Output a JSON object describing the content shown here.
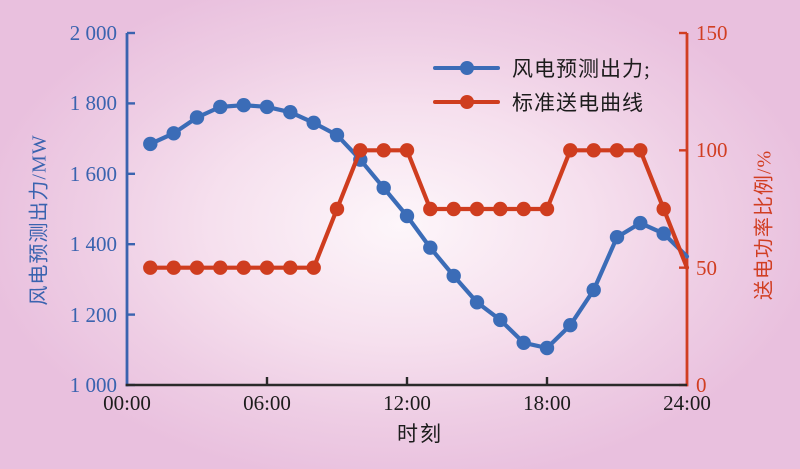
{
  "colors": {
    "wind_blue": "#3b6cb7",
    "blue_text": "#3a63af",
    "curve_red": "#cf3d1f",
    "red_text": "#d13e22",
    "black_text": "#1c1c1c",
    "x_axis": "#2a2a2a"
  },
  "legend": {
    "items": [
      {
        "label": "风电预测出力;",
        "color": "#3b6cb7"
      },
      {
        "label": "标准送电曲线",
        "color": "#cf3d1f"
      }
    ]
  },
  "chart_data": {
    "type": "line",
    "title": "",
    "xlabel": "时刻",
    "ylabel_left": "风电预测出力/MW",
    "ylabel_right": "送电功率比例/%",
    "grid": false,
    "legend_position": "top-right-inside",
    "x_hours": [
      1,
      2,
      3,
      4,
      5,
      6,
      7,
      8,
      9,
      10,
      11,
      12,
      13,
      14,
      15,
      16,
      17,
      18,
      19,
      20,
      21,
      22,
      23,
      24
    ],
    "x_range_hours": [
      0,
      24
    ],
    "x_ticks": [
      {
        "hour": 0,
        "label": "00:00"
      },
      {
        "hour": 6,
        "label": "06:00"
      },
      {
        "hour": 12,
        "label": "12:00"
      },
      {
        "hour": 18,
        "label": "18:00"
      },
      {
        "hour": 24,
        "label": "24:00"
      }
    ],
    "left_axis": {
      "min": 1000,
      "max": 2000,
      "color": "#3a63af",
      "ticks": [
        {
          "value": 1000,
          "label": "1 000"
        },
        {
          "value": 1200,
          "label": "1 200"
        },
        {
          "value": 1400,
          "label": "1 400"
        },
        {
          "value": 1600,
          "label": "1 600"
        },
        {
          "value": 1800,
          "label": "1 800"
        },
        {
          "value": 2000,
          "label": "2 000"
        }
      ]
    },
    "right_axis": {
      "min": 0,
      "max": 150,
      "color": "#d13e22",
      "ticks": [
        {
          "value": 0,
          "label": "0"
        },
        {
          "value": 50,
          "label": "50"
        },
        {
          "value": 100,
          "label": "100"
        },
        {
          "value": 150,
          "label": "150"
        }
      ]
    },
    "series": [
      {
        "name": "风电预测出力",
        "axis": "left",
        "color": "#3b6cb7",
        "last_point_marker": false,
        "values": [
          1685,
          1715,
          1760,
          1790,
          1795,
          1790,
          1775,
          1745,
          1710,
          1640,
          1560,
          1480,
          1390,
          1310,
          1235,
          1185,
          1120,
          1105,
          1170,
          1270,
          1420,
          1460,
          1430,
          1365
        ]
      },
      {
        "name": "标准送电曲线",
        "axis": "right",
        "color": "#cf3d1f",
        "last_point_marker": false,
        "values": [
          50,
          50,
          50,
          50,
          50,
          50,
          50,
          50,
          75,
          100,
          100,
          100,
          75,
          75,
          75,
          75,
          75,
          75,
          100,
          100,
          100,
          100,
          75,
          50
        ]
      }
    ]
  }
}
